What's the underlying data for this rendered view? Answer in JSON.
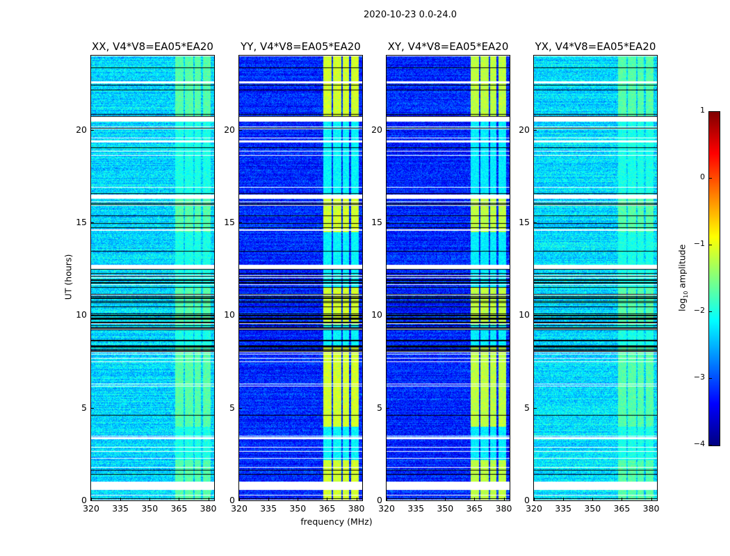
{
  "suptitle": "2020-10-23 0.0-24.0",
  "xlabel": "frequency (MHz)",
  "ylabel": "UT (hours)",
  "colorbar": {
    "label_pre": "log",
    "label_sub": "10",
    "label_post": " amplitude",
    "ticks": [
      "1",
      "0",
      "−1",
      "−2",
      "−3",
      "−4"
    ],
    "range": [
      -4,
      1
    ],
    "colormap": "jet"
  },
  "chart_data": {
    "type": "heatmap",
    "xlabel": "frequency (MHz)",
    "ylabel": "UT (hours)",
    "xlim": [
      320,
      383
    ],
    "ylim": [
      0,
      24
    ],
    "xticks": [
      "320",
      "335",
      "350",
      "365",
      "380"
    ],
    "yticks": [
      "0",
      "5",
      "10",
      "15",
      "20"
    ],
    "colorbar_range": [
      -4,
      1
    ],
    "rfi_band_mhz": [
      363,
      381
    ],
    "flagged_hours": [
      [
        0.55,
        1.0
      ],
      [
        20.45,
        20.7
      ],
      [
        16.3,
        16.5
      ],
      [
        12.5,
        12.7
      ],
      [
        3.3,
        3.4
      ],
      [
        19.3,
        19.4
      ],
      [
        22.5,
        22.6
      ]
    ],
    "panels": [
      {
        "title": "XX, V4*V8=EA05*EA20",
        "background_log_amp": -2.3,
        "band_log_amp": -1.7
      },
      {
        "title": "YY, V4*V8=EA05*EA20",
        "background_log_amp": -3.2,
        "band_log_amp": -1.1
      },
      {
        "title": "XY, V4*V8=EA05*EA20",
        "background_log_amp": -3.2,
        "band_log_amp": -1.2
      },
      {
        "title": "YX, V4*V8=EA05*EA20",
        "background_log_amp": -2.3,
        "band_log_amp": -1.7
      }
    ]
  }
}
